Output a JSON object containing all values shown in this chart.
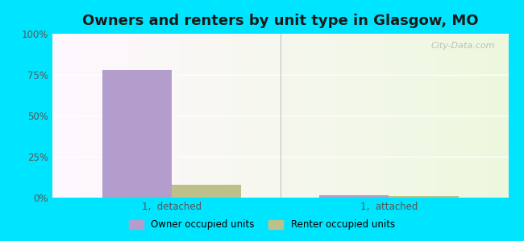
{
  "title": "Owners and renters by unit type in Glasgow, MO",
  "categories": [
    "1,  detached",
    "1,  attached"
  ],
  "owner_values": [
    78,
    1.5
  ],
  "renter_values": [
    8,
    1.2
  ],
  "owner_color": "#b39dcc",
  "renter_color": "#bec08a",
  "yticks": [
    0,
    25,
    50,
    75,
    100
  ],
  "ytick_labels": [
    "0%",
    "25%",
    "50%",
    "75%",
    "100%"
  ],
  "outer_bg": "#00e5ff",
  "legend_owner": "Owner occupied units",
  "legend_renter": "Renter occupied units",
  "bar_width": 0.32,
  "title_fontsize": 13,
  "watermark": "City-Data.com"
}
